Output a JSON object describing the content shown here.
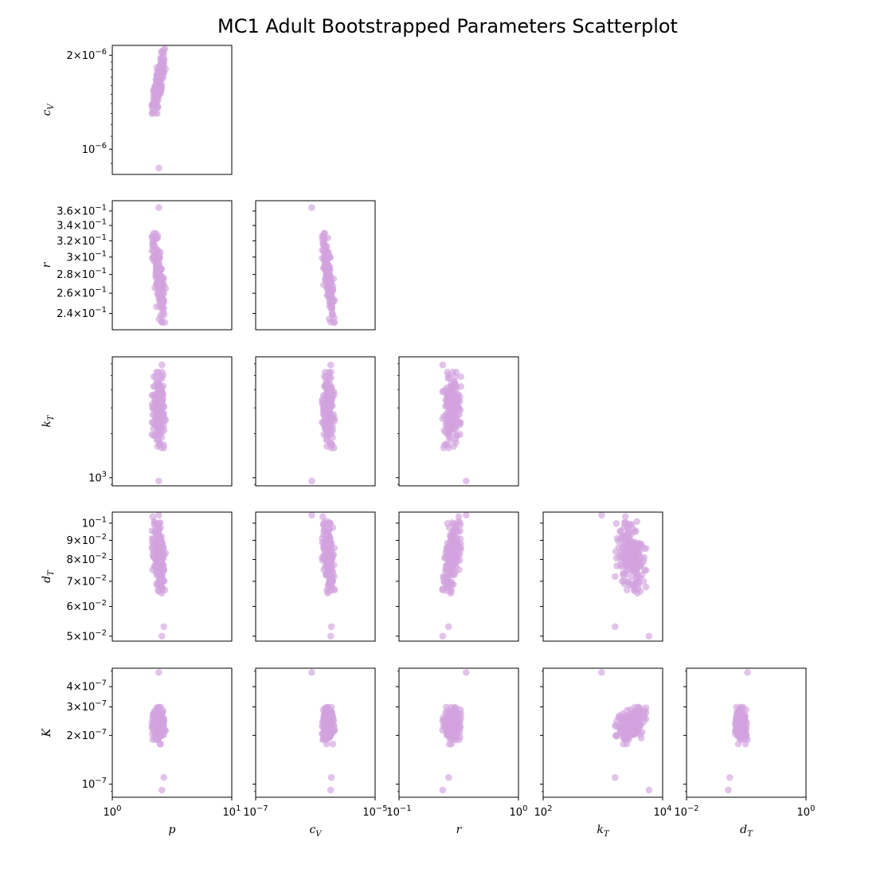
{
  "chart_data": {
    "type": "scatter",
    "title": "MC1 Adult Bootstrapped Parameters Scatterplot",
    "marker_color": "#d3a3de",
    "marker_alpha": 0.65,
    "x_scale": "log",
    "y_scale": "log",
    "variables": [
      {
        "name": "p",
        "display": "p",
        "sub": ""
      },
      {
        "name": "c_V",
        "display": "c",
        "sub": "V"
      },
      {
        "name": "r",
        "display": "r",
        "sub": ""
      },
      {
        "name": "k_T",
        "display": "k",
        "sub": "T"
      },
      {
        "name": "d_T",
        "display": "d",
        "sub": "T"
      },
      {
        "name": "K",
        "display": "K",
        "sub": ""
      }
    ],
    "x_axes": [
      {
        "variable": "p",
        "xlim": [
          1,
          10
        ],
        "tick_values": [
          1,
          10
        ],
        "tick_labels": [
          "10^0",
          "10^1"
        ]
      },
      {
        "variable": "c_V",
        "xlim": [
          1e-07,
          1e-05
        ],
        "tick_values": [
          1e-07,
          1e-05
        ],
        "tick_labels": [
          "10^-7",
          "10^-5"
        ]
      },
      {
        "variable": "r",
        "xlim": [
          0.1,
          1
        ],
        "tick_values": [
          0.1,
          1
        ],
        "tick_labels": [
          "10^-1",
          "10^0"
        ]
      },
      {
        "variable": "k_T",
        "xlim": [
          100,
          10000
        ],
        "tick_values": [
          100,
          10000
        ],
        "tick_labels": [
          "10^2",
          "10^4"
        ]
      },
      {
        "variable": "d_T",
        "xlim": [
          0.01,
          1
        ],
        "tick_values": [
          0.01,
          1
        ],
        "tick_labels": [
          "10^-2",
          "10^0"
        ]
      }
    ],
    "y_axes": [
      {
        "variable": "c_V",
        "ylim": [
          8.3e-07,
          2.15e-06
        ],
        "tick_values": [
          1e-06,
          2e-06
        ],
        "tick_labels": [
          "10^-6",
          "2×10^-6"
        ],
        "minor_tick_values": [
          9e-07,
          1.1e-06,
          1.2e-06,
          1.3e-06,
          1.4e-06,
          1.5e-06,
          1.6e-06,
          1.7e-06,
          1.8e-06,
          1.9e-06
        ]
      },
      {
        "variable": "r",
        "ylim": [
          0.225,
          0.375
        ],
        "tick_values": [
          0.24,
          0.26,
          0.28,
          0.3,
          0.32,
          0.34,
          0.36
        ],
        "tick_labels": [
          "2.4×10^-1",
          "2.6×10^-1",
          "2.8×10^-1",
          "3×10^-1",
          "3.2×10^-1",
          "3.4×10^-1",
          "3.6×10^-1"
        ],
        "minor_tick_values": []
      },
      {
        "variable": "k_T",
        "ylim": [
          880,
          6700
        ],
        "tick_values": [
          1000
        ],
        "tick_labels": [
          "10^3"
        ],
        "minor_tick_values": [
          900,
          2000,
          3000,
          4000,
          5000,
          6000
        ]
      },
      {
        "variable": "d_T",
        "ylim": [
          0.0485,
          0.107
        ],
        "tick_values": [
          0.05,
          0.06,
          0.07,
          0.08,
          0.09,
          0.1
        ],
        "tick_labels": [
          "5×10^-2",
          "6×10^-2",
          "7×10^-2",
          "8×10^-2",
          "9×10^-2",
          "10^-1"
        ],
        "minor_tick_values": []
      },
      {
        "variable": "K",
        "ylim": [
          8.3e-08,
          5.2e-07
        ],
        "tick_values": [
          1e-07,
          2e-07,
          3e-07,
          4e-07
        ],
        "tick_labels": [
          "10^-7",
          "2×10^-7",
          "3×10^-7",
          "4×10^-7"
        ],
        "minor_tick_values": [
          9e-08,
          5e-07
        ]
      }
    ],
    "series": [
      {
        "variable": "p",
        "center": 2.45,
        "spread": 0.055,
        "outliers": [
          2.45,
          2.45
        ]
      },
      {
        "variable": "c_V",
        "center": 1.65e-06,
        "spread": 0.1,
        "outliers": [
          8.7e-07,
          2.02e-06
        ]
      },
      {
        "variable": "r",
        "center": 0.277,
        "spread": 0.075,
        "outliers": [
          0.365,
          0.232
        ]
      },
      {
        "variable": "k_T",
        "center": 2900,
        "spread": 0.25,
        "outliers": [
          950,
          5900
        ]
      },
      {
        "variable": "d_T",
        "center": 0.082,
        "spread": 0.1,
        "outliers": [
          0.105,
          0.05
        ]
      },
      {
        "variable": "K",
        "center": 2.3e-07,
        "spread": 0.11,
        "outliers": [
          4.9e-07,
          9.2e-08,
          1.1e-07
        ]
      }
    ],
    "n_points": 200,
    "correlations": {
      "p|c_V": 0.8,
      "p|r": -0.85,
      "c_V|r": -0.6,
      "r|d_T": 0.55,
      "k_T|d_T": -0.3,
      "c_V|d_T": -0.4,
      "k_T|K": 0.4
    }
  }
}
